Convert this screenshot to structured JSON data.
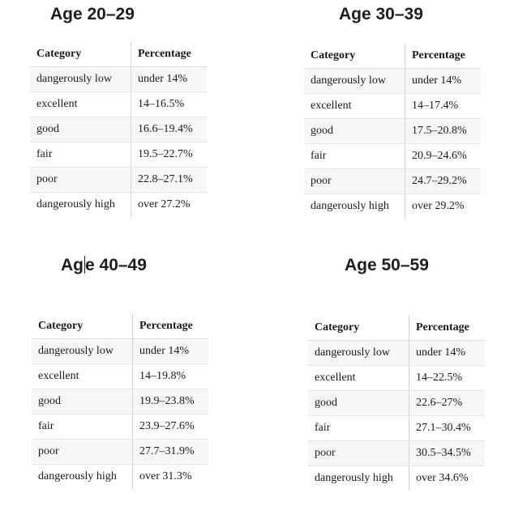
{
  "tables": [
    {
      "title": "Age 20–29",
      "header": {
        "category": "Category",
        "percentage": "Percentage"
      },
      "rows": [
        {
          "category": "dangerously low",
          "percentage": "under 14%"
        },
        {
          "category": "excellent",
          "percentage": "14–16.5%"
        },
        {
          "category": "good",
          "percentage": "16.6–19.4%"
        },
        {
          "category": "fair",
          "percentage": "19.5–22.7%"
        },
        {
          "category": "poor",
          "percentage": "22.8–27.1%"
        },
        {
          "category": "dangerously high",
          "percentage": "over 27.2%"
        }
      ]
    },
    {
      "title": "Age 30–39",
      "header": {
        "category": "Category",
        "percentage": "Percentage"
      },
      "rows": [
        {
          "category": "dangerously low",
          "percentage": "under 14%"
        },
        {
          "category": "excellent",
          "percentage": "14–17.4%"
        },
        {
          "category": "good",
          "percentage": "17.5–20.8%"
        },
        {
          "category": "fair",
          "percentage": "20.9–24.6%"
        },
        {
          "category": "poor",
          "percentage": "24.7–29.2%"
        },
        {
          "category": "dangerously high",
          "percentage": "over 29.2%"
        }
      ]
    },
    {
      "title": "Age 40–49",
      "header": {
        "category": "Category",
        "percentage": "Percentage"
      },
      "rows": [
        {
          "category": "dangerously low",
          "percentage": "under 14%"
        },
        {
          "category": "excellent",
          "percentage": "14–19.8%"
        },
        {
          "category": "good",
          "percentage": "19.9–23.8%"
        },
        {
          "category": "fair",
          "percentage": "23.9–27.6%"
        },
        {
          "category": "poor",
          "percentage": "27.7–31.9%"
        },
        {
          "category": "dangerously high",
          "percentage": "over 31.3%"
        }
      ]
    },
    {
      "title": "Age 50–59",
      "header": {
        "category": "Category",
        "percentage": "Percentage"
      },
      "rows": [
        {
          "category": "dangerously low",
          "percentage": "under 14%"
        },
        {
          "category": "excellent",
          "percentage": "14–22.5%"
        },
        {
          "category": "good",
          "percentage": "22.6–27%"
        },
        {
          "category": "fair",
          "percentage": "27.1–30.4%"
        },
        {
          "category": "poor",
          "percentage": "30.5–34.5%"
        },
        {
          "category": "dangerously high",
          "percentage": "over 34.6%"
        }
      ]
    }
  ]
}
